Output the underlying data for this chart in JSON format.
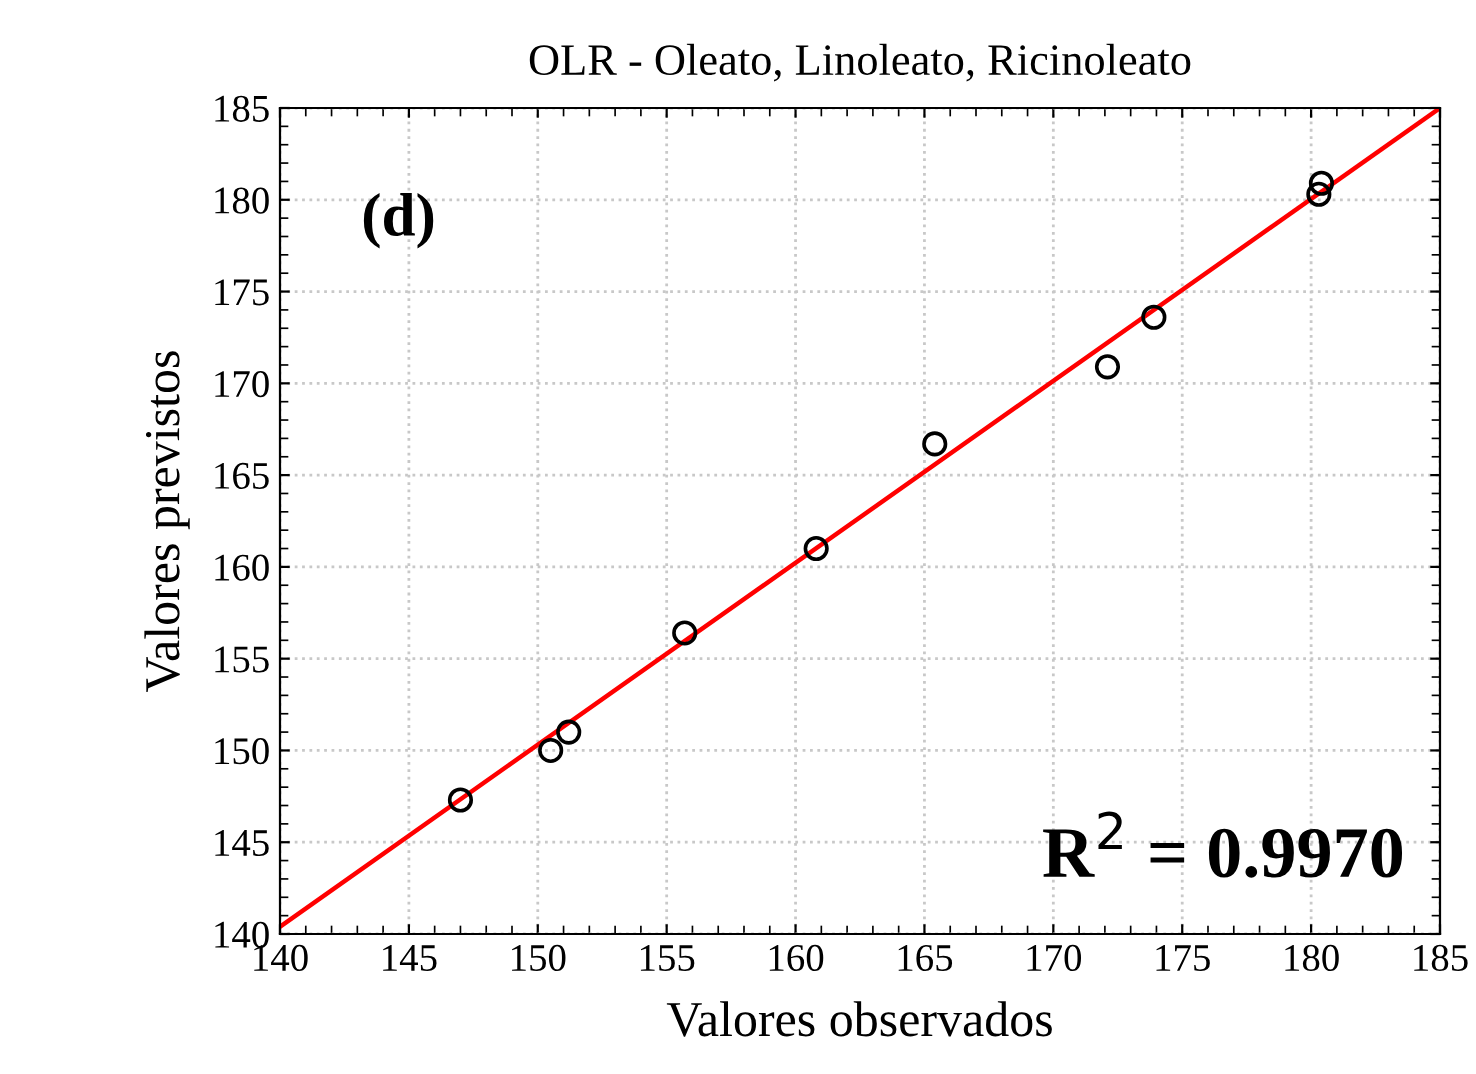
{
  "chart_data": {
    "type": "scatter",
    "title": "OLR - Oleato, Linoleato, Ricinoleato",
    "xlabel": "Valores observados",
    "ylabel": "Valores previstos",
    "annotations": [
      "(d)",
      "R$^{2}$ = 0.9970"
    ],
    "series": [
      {
        "color": "#000000",
        "marker": "circle",
        "x": [
          147,
          150.5,
          151.2,
          155.7,
          160.8,
          165.4,
          172.1,
          173.9,
          180.3,
          180.4
        ],
        "values": [
          147.3,
          150.0,
          151.0,
          156.4,
          161.0,
          166.7,
          170.9,
          173.6,
          180.3,
          180.9
        ]
      },
      {
        "type": "line",
        "color": "#ff0000",
        "x": [
          140,
          185
        ],
        "values": [
          140.4,
          185
        ]
      }
    ],
    "xlim": [
      140,
      185
    ],
    "ylim": [
      140,
      185
    ],
    "xticks": [
      140,
      145,
      150,
      155,
      160,
      165,
      170,
      175,
      180,
      185
    ],
    "yticks": [
      140,
      145,
      150,
      155,
      160,
      165,
      170,
      175,
      180,
      185
    ],
    "grid": true
  }
}
